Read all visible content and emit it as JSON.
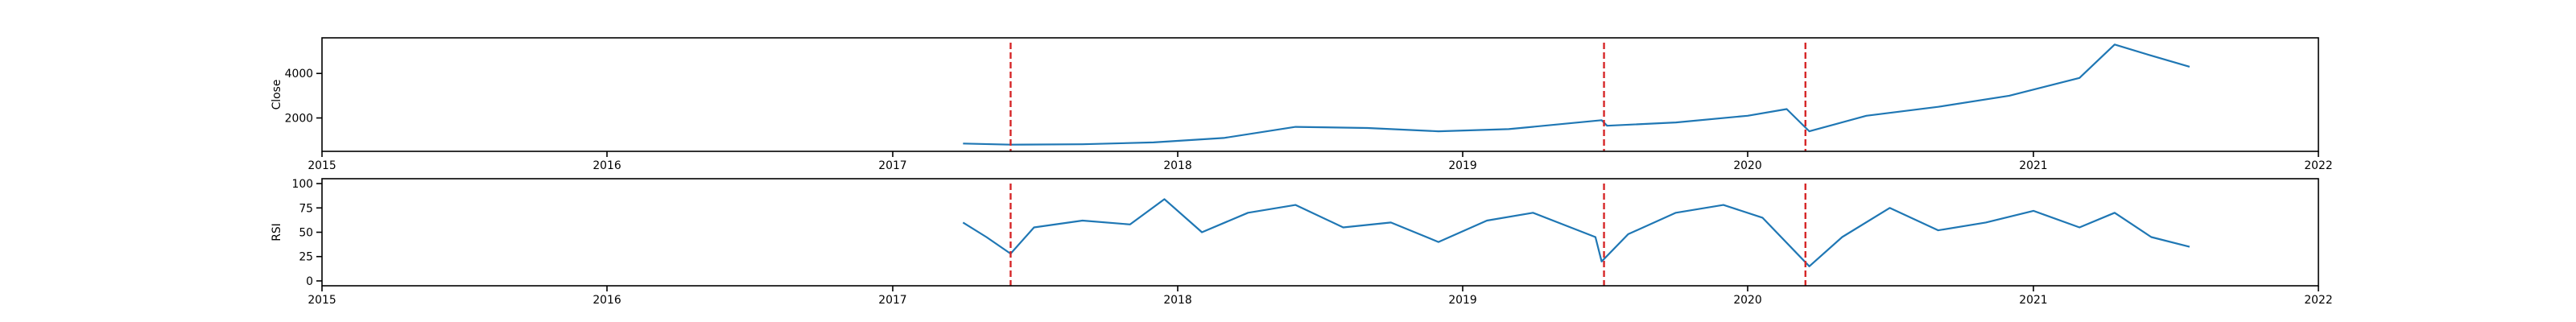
{
  "colors": {
    "series": "#1f77b4",
    "event_lines": "#d62728"
  },
  "chart_data": [
    {
      "type": "line",
      "title": "",
      "xlabel": "",
      "ylabel": "Close",
      "x_ticks": [
        "2015",
        "2016",
        "2017",
        "2018",
        "2019",
        "2020",
        "2021",
        "2022"
      ],
      "y_ticks": [
        2000,
        4000
      ],
      "xlim": [
        "2015-01-01",
        "2022-01-01"
      ],
      "ylim": [
        500,
        5600
      ],
      "grid": false,
      "vlines": [
        "2017-06-01",
        "2019-07-01",
        "2020-03-15"
      ],
      "series": [
        {
          "x": [
            "2017-04-01",
            "2017-06-01",
            "2017-09-01",
            "2017-12-01",
            "2018-03-01",
            "2018-06-01",
            "2018-09-01",
            "2018-12-01",
            "2019-03-01",
            "2019-06-28",
            "2019-07-05",
            "2019-10-01",
            "2020-01-01",
            "2020-02-20",
            "2020-03-20",
            "2020-06-01",
            "2020-09-01",
            "2020-12-01",
            "2021-03-01",
            "2021-04-15",
            "2021-06-01",
            "2021-07-20"
          ],
          "y": [
            850,
            800,
            820,
            900,
            1100,
            1600,
            1550,
            1400,
            1500,
            1900,
            1650,
            1800,
            2100,
            2400,
            1400,
            2100,
            2500,
            3000,
            3800,
            5300,
            4800,
            4300
          ]
        }
      ]
    },
    {
      "type": "line",
      "title": "",
      "xlabel": "",
      "ylabel": "RSI",
      "x_ticks": [
        "2015",
        "2016",
        "2017",
        "2018",
        "2019",
        "2020",
        "2021",
        "2022"
      ],
      "y_ticks": [
        0,
        25,
        50,
        75,
        100
      ],
      "xlim": [
        "2015-01-01",
        "2022-01-01"
      ],
      "ylim": [
        -5,
        105
      ],
      "grid": false,
      "vlines": [
        "2017-06-01",
        "2019-07-01",
        "2020-03-15"
      ],
      "series": [
        {
          "x": [
            "2017-04-01",
            "2017-05-01",
            "2017-06-01",
            "2017-07-01",
            "2017-09-01",
            "2017-11-01",
            "2017-12-15",
            "2018-02-01",
            "2018-04-01",
            "2018-06-01",
            "2018-08-01",
            "2018-10-01",
            "2018-12-01",
            "2019-02-01",
            "2019-04-01",
            "2019-06-20",
            "2019-06-28",
            "2019-08-01",
            "2019-10-01",
            "2019-12-01",
            "2020-01-20",
            "2020-03-20",
            "2020-05-01",
            "2020-07-01",
            "2020-09-01",
            "2020-11-01",
            "2021-01-01",
            "2021-03-01",
            "2021-04-15",
            "2021-06-01",
            "2021-07-20"
          ],
          "y": [
            60,
            45,
            28,
            55,
            62,
            58,
            84,
            50,
            70,
            78,
            55,
            60,
            40,
            62,
            70,
            45,
            20,
            48,
            70,
            78,
            65,
            15,
            45,
            75,
            52,
            60,
            72,
            55,
            70,
            45,
            35
          ]
        }
      ]
    }
  ]
}
